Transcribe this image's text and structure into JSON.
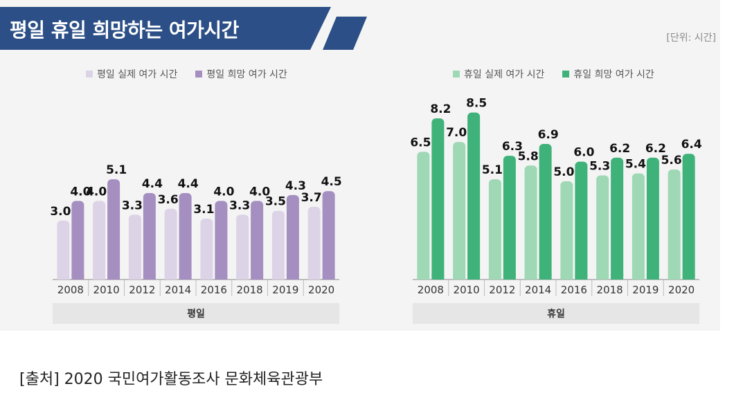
{
  "title": "평일 휴일 희망하는 여가시간",
  "unit": "[단위: 시간]",
  "source": "[출처] 2020 국민여가활동조사 문화체육관광부",
  "colors": {
    "banner": "#2b4f86",
    "weekday_actual": "#ddd3e6",
    "weekday_hope": "#a58fc0",
    "holiday_actual": "#9fd8b5",
    "holiday_hope": "#3fb27a"
  },
  "chart_data": [
    {
      "type": "bar",
      "group_label": "평일",
      "categories": [
        "2008",
        "2010",
        "2012",
        "2014",
        "2016",
        "2018",
        "2019",
        "2020"
      ],
      "series": [
        {
          "name": "평일 실제 여가 시간",
          "values": [
            3.0,
            4.0,
            3.3,
            3.6,
            3.1,
            3.3,
            3.5,
            3.7
          ]
        },
        {
          "name": "평일 희망 여가 시간",
          "values": [
            4.0,
            5.1,
            4.4,
            4.4,
            4.0,
            4.0,
            4.3,
            4.5
          ]
        }
      ],
      "ylim": [
        0,
        10
      ],
      "legend": "top"
    },
    {
      "type": "bar",
      "group_label": "휴일",
      "categories": [
        "2008",
        "2010",
        "2012",
        "2014",
        "2016",
        "2018",
        "2019",
        "2020"
      ],
      "series": [
        {
          "name": "휴일 실제 여가 시간",
          "values": [
            6.5,
            7.0,
            5.1,
            5.8,
            5.0,
            5.3,
            5.4,
            5.6
          ]
        },
        {
          "name": "휴일 희망 여가 시간",
          "values": [
            8.2,
            8.5,
            6.3,
            6.9,
            6.0,
            6.2,
            6.2,
            6.4
          ]
        }
      ],
      "ylim": [
        0,
        10
      ],
      "legend": "top"
    }
  ]
}
